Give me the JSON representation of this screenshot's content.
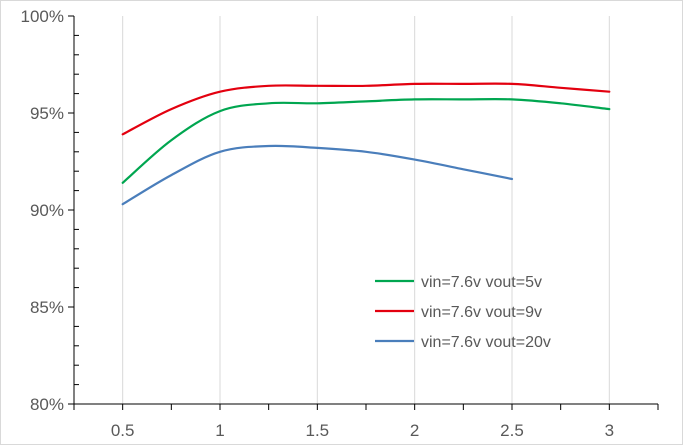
{
  "chart_data": {
    "type": "line",
    "title": "",
    "xlabel": "",
    "ylabel": "",
    "x_ticks": [
      "0.5",
      "1",
      "1.5",
      "2",
      "2.5",
      "3"
    ],
    "y_ticks": [
      "80%",
      "85%",
      "90%",
      "95%",
      "100%"
    ],
    "xlim": [
      0.25,
      3.25
    ],
    "ylim": [
      0.8,
      1.0
    ],
    "grid": "vertical",
    "legend_position": "lower-right inside plot",
    "series": [
      {
        "name": "vin=7.6v vout=5v",
        "color": "#00a650",
        "x": [
          0.5,
          0.75,
          1.0,
          1.25,
          1.5,
          1.75,
          2.0,
          2.25,
          2.5,
          2.75,
          3.0
        ],
        "y": [
          0.914,
          0.936,
          0.951,
          0.955,
          0.955,
          0.956,
          0.957,
          0.957,
          0.957,
          0.955,
          0.952
        ]
      },
      {
        "name": "vin=7.6v vout=9v",
        "color": "#e3000f",
        "x": [
          0.5,
          0.75,
          1.0,
          1.25,
          1.5,
          1.75,
          2.0,
          2.25,
          2.5,
          2.75,
          3.0
        ],
        "y": [
          0.939,
          0.952,
          0.961,
          0.964,
          0.964,
          0.964,
          0.965,
          0.965,
          0.965,
          0.963,
          0.961
        ]
      },
      {
        "name": "vin=7.6v vout=20v",
        "color": "#4a7ebb",
        "x": [
          0.5,
          0.75,
          1.0,
          1.25,
          1.5,
          1.75,
          2.0,
          2.25,
          2.5
        ],
        "y": [
          0.903,
          0.918,
          0.93,
          0.933,
          0.932,
          0.93,
          0.926,
          0.921,
          0.916
        ]
      }
    ]
  }
}
